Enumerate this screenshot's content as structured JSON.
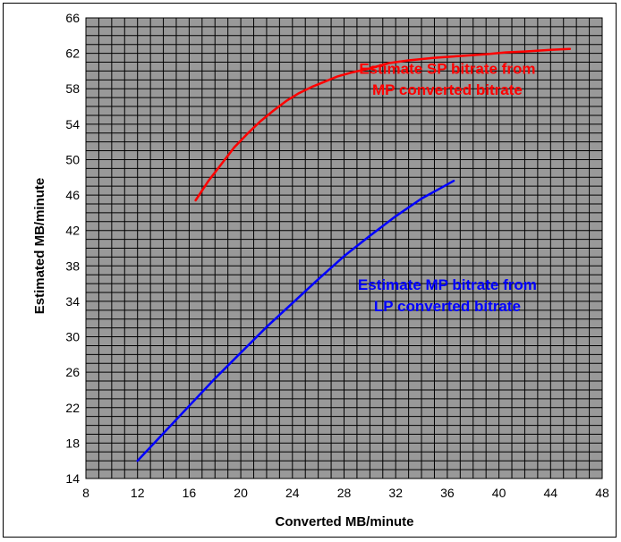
{
  "chart_data": {
    "type": "line",
    "title": "",
    "xlabel": "Converted MB/minute",
    "ylabel": "Estimated MB/minute",
    "xlim": [
      8,
      48
    ],
    "ylim": [
      14,
      66
    ],
    "x_ticks": [
      8,
      12,
      16,
      20,
      24,
      28,
      32,
      36,
      40,
      44,
      48
    ],
    "y_ticks": [
      14,
      18,
      22,
      26,
      30,
      34,
      38,
      42,
      46,
      50,
      54,
      58,
      62,
      66
    ],
    "grid": true,
    "legend": "none",
    "plot_background": "#999999",
    "series": [
      {
        "color": "#ff0000",
        "x": [
          16.5,
          17.5,
          18.5,
          19.5,
          20.5,
          21.5,
          22.5,
          23.5,
          24.5,
          25.5,
          26.5,
          27.5,
          28.5,
          30,
          31.5,
          33,
          35,
          37,
          39,
          40.5,
          42,
          44,
          45.5
        ],
        "y": [
          45.4,
          47.6,
          49.5,
          51.4,
          52.9,
          54.3,
          55.5,
          56.6,
          57.5,
          58.2,
          58.8,
          59.4,
          59.8,
          60.3,
          60.9,
          61.2,
          61.5,
          61.7,
          61.9,
          62.1,
          62.2,
          62.4,
          62.5
        ]
      },
      {
        "color": "#0000ff",
        "x": [
          12,
          14,
          16,
          18,
          20,
          22,
          24,
          26,
          28,
          30,
          32,
          34,
          35.5,
          36.5
        ],
        "y": [
          16,
          19.1,
          22.2,
          25.3,
          28.2,
          31.1,
          33.8,
          36.5,
          39.1,
          41.4,
          43.6,
          45.6,
          46.8,
          47.6
        ]
      }
    ],
    "annotations": [
      {
        "lines": [
          "Estimate SP bitrate from",
          "MP converted bitrate"
        ],
        "color": "#ff0000",
        "anchor_x": 36,
        "anchor_y": [
          59.7,
          57.3
        ]
      },
      {
        "lines": [
          "Estimate MP bitrate from",
          "LP converted bitrate"
        ],
        "color": "#0000ff",
        "anchor_x": 36,
        "anchor_y": [
          35.3,
          32.9
        ]
      }
    ]
  }
}
